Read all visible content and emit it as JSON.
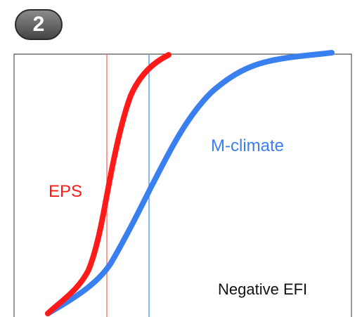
{
  "badge": {
    "number": "2"
  },
  "curves": [
    {
      "name": "EPS",
      "color": "#ff1a1a"
    },
    {
      "name": "M-climate",
      "color": "#3a7ff0"
    }
  ],
  "reference_lines": [
    {
      "color": "#ff6a5a"
    },
    {
      "color": "#4a8ff0"
    }
  ],
  "annotation": "Negative EFI"
}
